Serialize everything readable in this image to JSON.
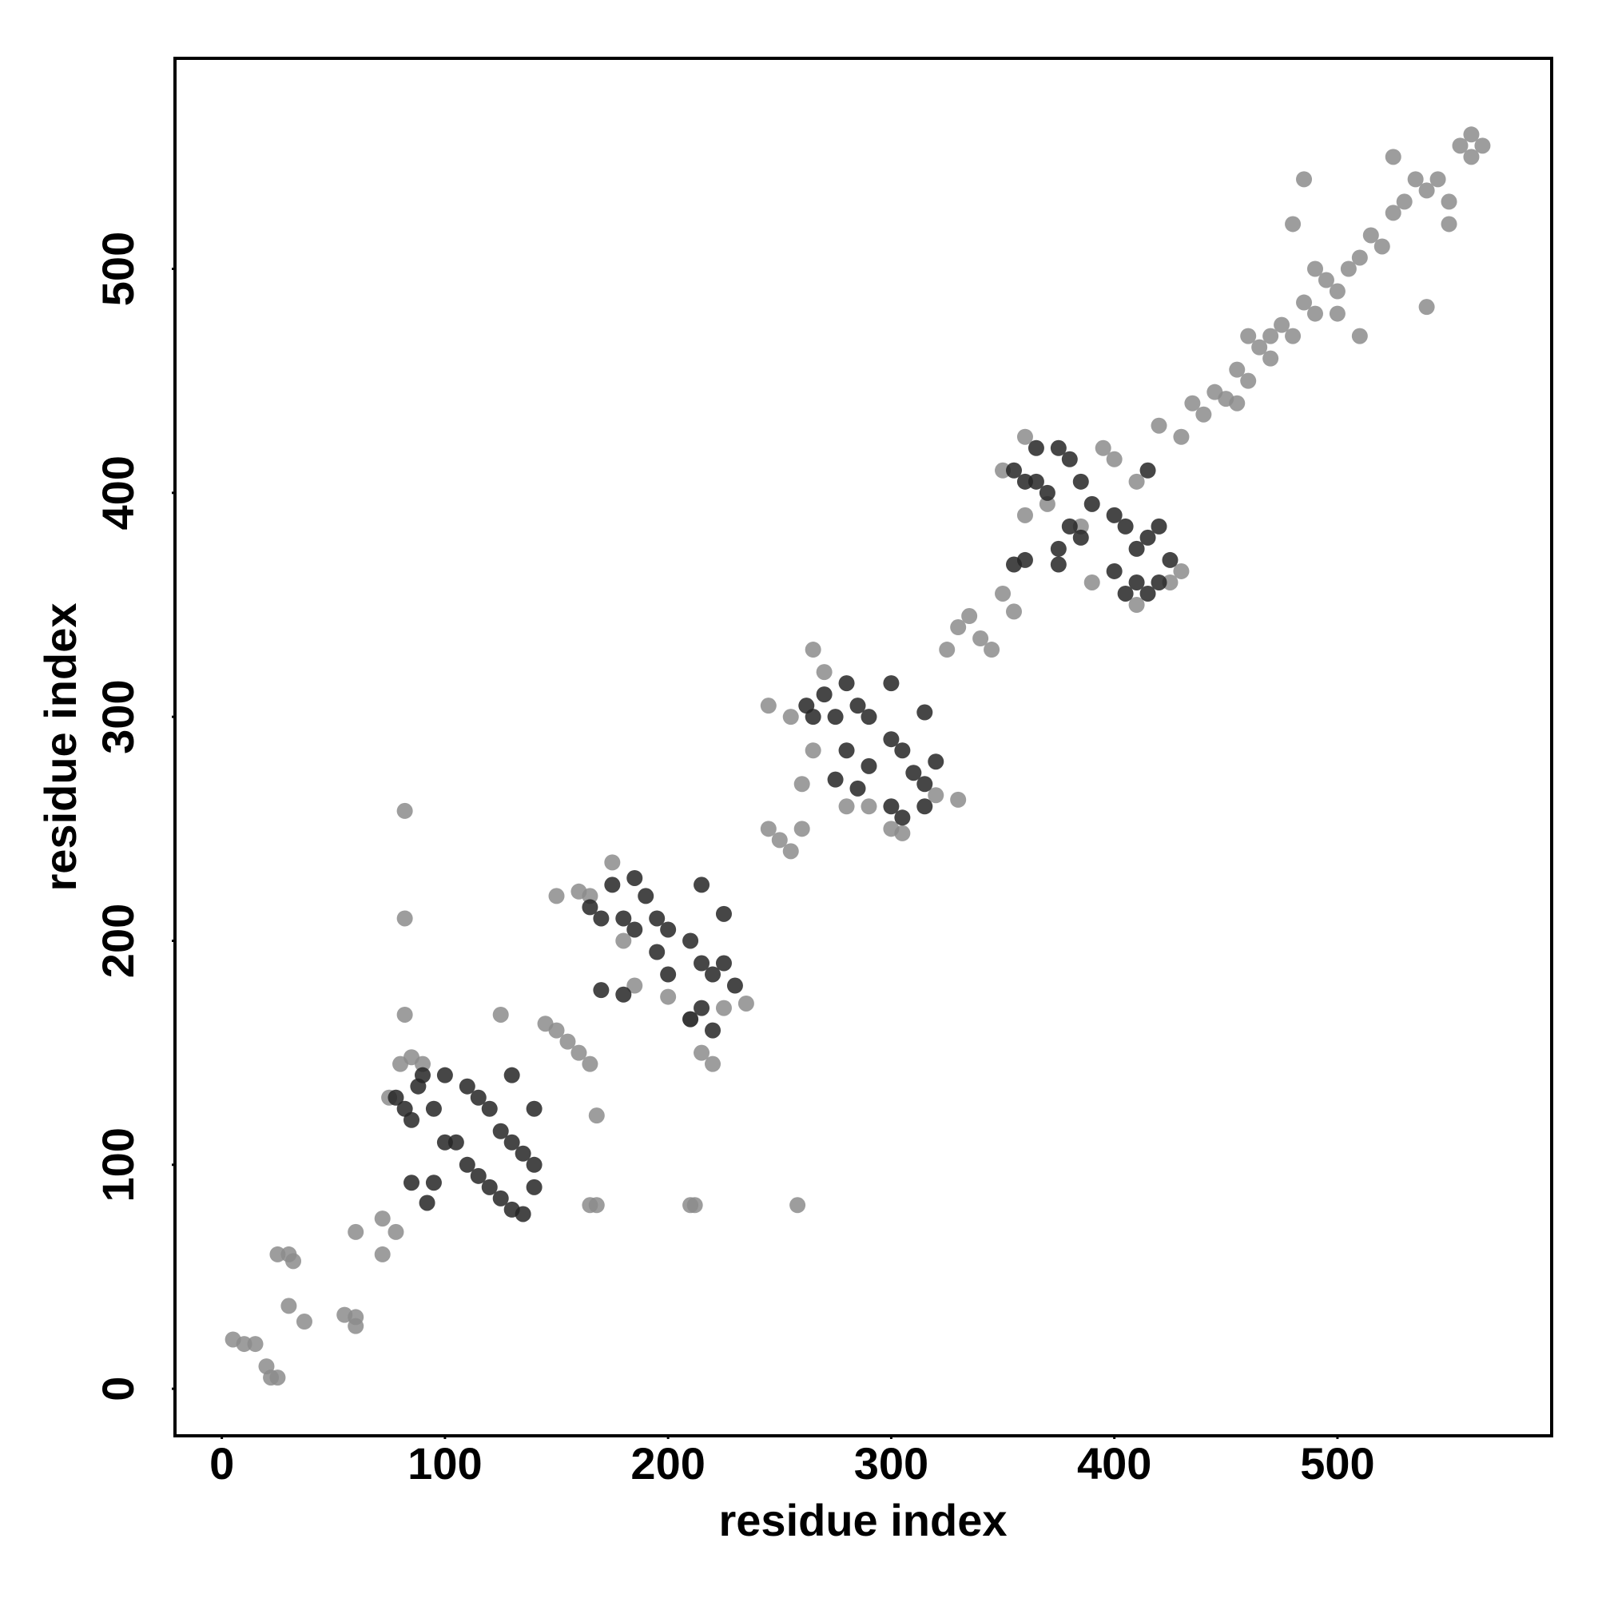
{
  "chart_data": {
    "type": "scatter",
    "x_label": "residue index",
    "y_label": "residue index",
    "xlim": [
      -21,
      596
    ],
    "ylim": [
      -21,
      594
    ],
    "xticks": [
      0,
      100,
      200,
      300,
      400,
      500
    ],
    "yticks": [
      0,
      100,
      200,
      300,
      400,
      500
    ],
    "series": [
      {
        "color": "#8c8c8c",
        "x": [
          5,
          10,
          15,
          20,
          22,
          25,
          25,
          30,
          32,
          30,
          37,
          55,
          60,
          60,
          60,
          72,
          72,
          78,
          82,
          82,
          82,
          75,
          80,
          85,
          90,
          125,
          145,
          150,
          155,
          160,
          165,
          150,
          160,
          168,
          165,
          168,
          210,
          212,
          258,
          165,
          175,
          180,
          185,
          200,
          210,
          215,
          220,
          225,
          235,
          245,
          250,
          255,
          260,
          245,
          255,
          265,
          270,
          260,
          265,
          280,
          290,
          300,
          305,
          320,
          330,
          325,
          330,
          335,
          340,
          345,
          350,
          355,
          350,
          360,
          360,
          370,
          385,
          390,
          395,
          400,
          410,
          410,
          430,
          425,
          420,
          430,
          435,
          440,
          445,
          450,
          455,
          460,
          465,
          470,
          475,
          480,
          485,
          490,
          495,
          500,
          505,
          510,
          515,
          520,
          490,
          480,
          500,
          510,
          525,
          530,
          535,
          540,
          545,
          550,
          555,
          560,
          565,
          560,
          525,
          485,
          540,
          550,
          470,
          455,
          460
        ],
        "y": [
          22,
          20,
          20,
          10,
          5,
          5,
          60,
          60,
          57,
          37,
          30,
          33,
          28,
          32,
          70,
          76,
          60,
          70,
          258,
          210,
          167,
          130,
          145,
          148,
          145,
          167,
          163,
          160,
          155,
          150,
          145,
          220,
          222,
          122,
          82,
          82,
          82,
          82,
          82,
          220,
          235,
          200,
          180,
          175,
          165,
          150,
          145,
          170,
          172,
          250,
          245,
          240,
          250,
          305,
          300,
          330,
          320,
          270,
          285,
          260,
          260,
          250,
          248,
          265,
          263,
          330,
          340,
          345,
          335,
          330,
          355,
          347,
          410,
          390,
          425,
          395,
          385,
          360,
          420,
          415,
          405,
          350,
          365,
          360,
          430,
          425,
          440,
          435,
          445,
          442,
          455,
          450,
          465,
          460,
          475,
          470,
          485,
          480,
          495,
          490,
          500,
          505,
          515,
          510,
          500,
          520,
          480,
          470,
          525,
          530,
          540,
          535,
          540,
          530,
          555,
          560,
          555,
          550,
          550,
          540,
          483,
          520,
          470,
          440,
          470
        ]
      },
      {
        "color": "#262626",
        "x": [
          78,
          82,
          85,
          88,
          90,
          95,
          100,
          105,
          110,
          100,
          110,
          115,
          120,
          125,
          130,
          135,
          140,
          140,
          130,
          125,
          120,
          115,
          135,
          140,
          130,
          95,
          92,
          85,
          165,
          170,
          175,
          185,
          190,
          195,
          200,
          210,
          215,
          220,
          225,
          215,
          210,
          220,
          230,
          215,
          225,
          180,
          185,
          195,
          200,
          170,
          180,
          262,
          265,
          270,
          275,
          280,
          285,
          290,
          300,
          305,
          310,
          315,
          320,
          300,
          305,
          315,
          300,
          315,
          280,
          290,
          275,
          285,
          355,
          360,
          365,
          375,
          380,
          385,
          390,
          400,
          405,
          410,
          415,
          420,
          425,
          410,
          405,
          415,
          420,
          400,
          365,
          370,
          375,
          380,
          385,
          360,
          355,
          375,
          415
        ],
        "y": [
          130,
          125,
          120,
          135,
          140,
          125,
          110,
          110,
          100,
          140,
          135,
          130,
          125,
          115,
          110,
          105,
          100,
          90,
          80,
          85,
          90,
          95,
          78,
          125,
          140,
          92,
          83,
          92,
          215,
          210,
          225,
          228,
          220,
          210,
          205,
          200,
          190,
          185,
          190,
          170,
          165,
          160,
          180,
          225,
          212,
          210,
          205,
          195,
          185,
          178,
          176,
          305,
          300,
          310,
          300,
          315,
          305,
          300,
          290,
          285,
          275,
          270,
          280,
          260,
          255,
          260,
          315,
          302,
          285,
          278,
          272,
          268,
          410,
          405,
          420,
          420,
          415,
          405,
          395,
          390,
          385,
          375,
          380,
          385,
          370,
          360,
          355,
          355,
          360,
          365,
          405,
          400,
          375,
          385,
          380,
          370,
          368,
          368,
          410
        ]
      }
    ]
  }
}
